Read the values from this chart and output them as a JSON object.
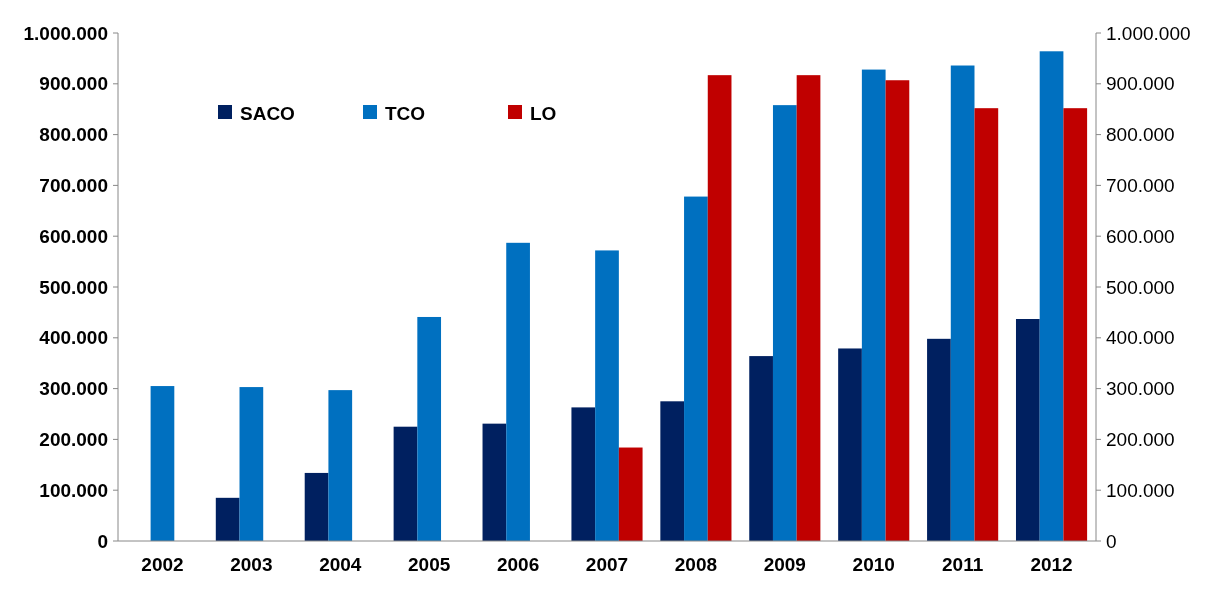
{
  "chart_data": {
    "type": "bar",
    "categories": [
      "2002",
      "2003",
      "2004",
      "2005",
      "2006",
      "2007",
      "2008",
      "2009",
      "2010",
      "2011",
      "2012"
    ],
    "series": [
      {
        "name": "SACO",
        "color": "#002060",
        "values": [
          null,
          85000,
          134000,
          225000,
          231000,
          263000,
          275000,
          364000,
          379000,
          398000,
          437000
        ]
      },
      {
        "name": "TCO",
        "color": "#0070c0",
        "values": [
          305000,
          303000,
          297000,
          441000,
          587000,
          572000,
          678000,
          858000,
          928000,
          936000,
          964000
        ]
      },
      {
        "name": "LO",
        "color": "#c00000",
        "values": [
          null,
          null,
          null,
          null,
          null,
          184000,
          917000,
          917000,
          907000,
          852000,
          852000
        ]
      }
    ],
    "ylim": [
      0,
      1000000
    ],
    "yticks": [
      {
        "value": 0,
        "label": "0"
      },
      {
        "value": 100000,
        "label": "100.000"
      },
      {
        "value": 200000,
        "label": "200.000"
      },
      {
        "value": 300000,
        "label": "300.000"
      },
      {
        "value": 400000,
        "label": "400.000"
      },
      {
        "value": 500000,
        "label": "500.000"
      },
      {
        "value": 600000,
        "label": "600.000"
      },
      {
        "value": 700000,
        "label": "700.000"
      },
      {
        "value": 800000,
        "label": "800.000"
      },
      {
        "value": 900000,
        "label": "900.000"
      },
      {
        "value": 1000000,
        "label": "1.000.000"
      }
    ],
    "y2lim": [
      0,
      1000000
    ],
    "y2ticks": [
      {
        "value": 0,
        "label": "0"
      },
      {
        "value": 100000,
        "label": "100.000"
      },
      {
        "value": 200000,
        "label": "200.000"
      },
      {
        "value": 300000,
        "label": "300.000"
      },
      {
        "value": 400000,
        "label": "400.000"
      },
      {
        "value": 500000,
        "label": "500.000"
      },
      {
        "value": 600000,
        "label": "600.000"
      },
      {
        "value": 700000,
        "label": "700.000"
      },
      {
        "value": 800000,
        "label": "800.000"
      },
      {
        "value": 900000,
        "label": "900.000"
      },
      {
        "value": 1000000,
        "label": "1.000.000"
      }
    ],
    "legend": "top left",
    "grid": false
  }
}
